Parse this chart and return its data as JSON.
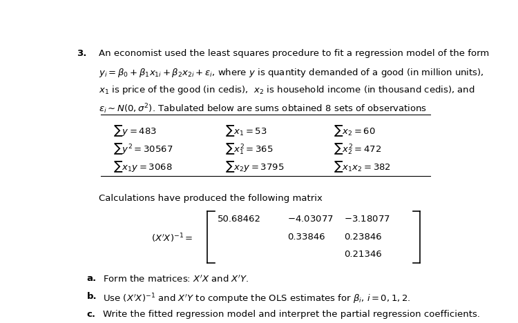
{
  "bg_color": "#ffffff",
  "text_color": "#000000",
  "fig_width": 7.5,
  "fig_height": 4.68,
  "dpi": 100,
  "question_number": "3.",
  "intro_line1": "An economist used the least squares procedure to fit a regression model of the form",
  "intro_line2_math": "$y_i = \\beta_0 + \\beta_1 x_{1i} + \\beta_2 x_{2i} + \\varepsilon_i$, where $y$ is quantity demanded of a good (in million units),",
  "intro_line3": "$x_1$ is price of the good (in cedis),  $x_2$ is household income (in thousand cedis), and",
  "intro_line4": "$\\varepsilon_i \\sim N\\left(0, \\sigma^2\\right)$. Tabulated below are sums obtained 8 sets of observations",
  "table_col1": [
    "$\\sum y = 483$",
    "$\\sum y^2 = 30567$",
    "$\\sum x_1 y = 3068$"
  ],
  "table_col2": [
    "$\\sum x_1 = 53$",
    "$\\sum x_1^2 = 365$",
    "$\\sum x_2 y = 3795$"
  ],
  "table_col3": [
    "$\\sum x_2 = 60$",
    "$\\sum x_2^2 = 472$",
    "$\\sum x_1 x_2 = 382$"
  ],
  "calc_line": "Calculations have produced the following matrix",
  "matrix_label": "$(X'X)^{-1} =$",
  "matrix_row1": [
    "50.68462",
    "$-4.03077$",
    "$-3.18077$"
  ],
  "matrix_row2": [
    "",
    "0.33846",
    "0.23846"
  ],
  "matrix_row3": [
    "",
    "",
    "0.21346"
  ],
  "part_a_label": "a.",
  "part_a_text": "Form the matrices: $X'X$ and $X'Y$.",
  "part_b_label": "b.",
  "part_b_text": "Use $\\left(X'X\\right)^{-1}$ and $X'Y$ to compute the OLS estimates for $\\beta_i$, $i = 0,1,2$.",
  "part_c_label": "c.",
  "part_c_text": "Write the fitted regression model and interpret the partial regression coefficients."
}
